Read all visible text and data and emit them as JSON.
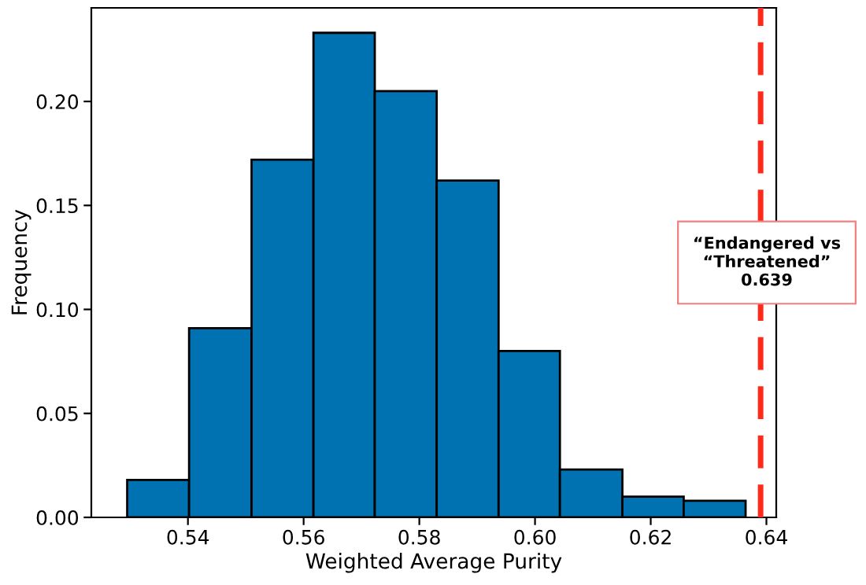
{
  "chart_data": {
    "type": "histogram",
    "xlabel": "Weighted Average Purity",
    "ylabel": "Frequency",
    "bins": [
      0.5295,
      0.5402,
      0.551,
      0.5617,
      0.5723,
      0.583,
      0.5937,
      0.6043,
      0.6151,
      0.6257,
      0.6364
    ],
    "values": [
      0.018,
      0.091,
      0.172,
      0.233,
      0.205,
      0.162,
      0.08,
      0.023,
      0.01,
      0.008
    ],
    "color": "#0072b2",
    "xlim": [
      0.5233,
      0.6417
    ],
    "xticks": [
      0.54,
      0.56,
      0.58,
      {
        "value": 0.6,
        "label": "0.60"
      },
      0.62,
      0.64
    ],
    "ylim": [
      0,
      0.245
    ],
    "yticks": [
      {
        "value": 0,
        "label": "0.00"
      },
      {
        "value": 0.05,
        "label": "0.05"
      },
      {
        "value": 0.1,
        "label": "0.10"
      },
      {
        "value": 0.15,
        "label": "0.15"
      },
      {
        "value": 0.2,
        "label": "0.20"
      }
    ],
    "ref_lines": [
      {
        "axis": "x",
        "value": 0.639,
        "label": "“Endangered vs\n“Threatened”\n0.639",
        "color": "#ff2a1a",
        "line_style": "dashed"
      }
    ],
    "grid": false
  }
}
